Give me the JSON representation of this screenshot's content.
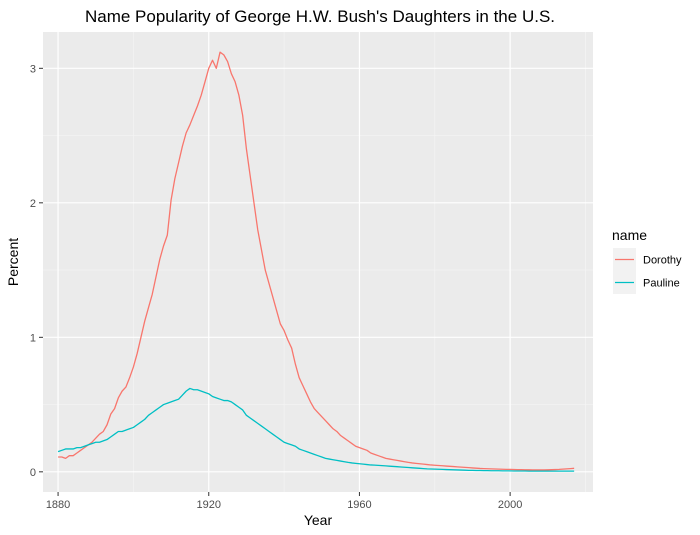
{
  "chart_data": {
    "type": "line",
    "title": "Name Popularity of George H.W. Bush's Daughters in the U.S.",
    "xlabel": "Year",
    "ylabel": "Percent",
    "xlim": [
      1876,
      2022
    ],
    "ylim": [
      -0.15,
      3.27
    ],
    "x_ticks": [
      1880,
      1920,
      1960,
      2000
    ],
    "y_ticks": [
      0,
      1,
      2,
      3
    ],
    "grid": true,
    "legend": {
      "title": "name",
      "placement": "right",
      "entries": [
        "Dorothy",
        "Pauline"
      ]
    },
    "colors": {
      "Dorothy": "#F8766D",
      "Pauline": "#00BFC4"
    },
    "x": [
      1880,
      1881,
      1882,
      1883,
      1884,
      1885,
      1886,
      1887,
      1888,
      1889,
      1890,
      1891,
      1892,
      1893,
      1894,
      1895,
      1896,
      1897,
      1898,
      1899,
      1900,
      1901,
      1902,
      1903,
      1904,
      1905,
      1906,
      1907,
      1908,
      1909,
      1910,
      1911,
      1912,
      1913,
      1914,
      1915,
      1916,
      1917,
      1918,
      1919,
      1920,
      1921,
      1922,
      1923,
      1924,
      1925,
      1926,
      1927,
      1928,
      1929,
      1930,
      1931,
      1932,
      1933,
      1934,
      1935,
      1936,
      1937,
      1938,
      1939,
      1940,
      1941,
      1942,
      1943,
      1944,
      1945,
      1946,
      1947,
      1948,
      1949,
      1950,
      1951,
      1952,
      1953,
      1954,
      1955,
      1956,
      1957,
      1958,
      1959,
      1960,
      1961,
      1962,
      1963,
      1964,
      1965,
      1966,
      1967,
      1968,
      1969,
      1970,
      1971,
      1972,
      1973,
      1974,
      1975,
      1976,
      1977,
      1978,
      1979,
      1980,
      1981,
      1982,
      1983,
      1984,
      1985,
      1986,
      1987,
      1988,
      1989,
      1990,
      1991,
      1992,
      1993,
      1994,
      1995,
      1996,
      1997,
      1998,
      1999,
      2000,
      2001,
      2002,
      2003,
      2004,
      2005,
      2006,
      2007,
      2008,
      2009,
      2010,
      2011,
      2012,
      2013,
      2014,
      2015,
      2016,
      2017
    ],
    "series": [
      {
        "name": "Dorothy",
        "values": [
          0.11,
          0.11,
          0.1,
          0.12,
          0.12,
          0.14,
          0.16,
          0.18,
          0.2,
          0.22,
          0.25,
          0.28,
          0.3,
          0.35,
          0.43,
          0.47,
          0.55,
          0.6,
          0.63,
          0.7,
          0.78,
          0.88,
          1.0,
          1.12,
          1.22,
          1.32,
          1.45,
          1.58,
          1.68,
          1.76,
          2.02,
          2.18,
          2.3,
          2.42,
          2.52,
          2.58,
          2.65,
          2.72,
          2.8,
          2.9,
          3.0,
          3.06,
          3.0,
          3.12,
          3.1,
          3.05,
          2.96,
          2.9,
          2.8,
          2.65,
          2.4,
          2.2,
          2.0,
          1.8,
          1.65,
          1.5,
          1.4,
          1.3,
          1.2,
          1.1,
          1.05,
          0.98,
          0.92,
          0.8,
          0.7,
          0.64,
          0.58,
          0.52,
          0.47,
          0.44,
          0.41,
          0.38,
          0.35,
          0.32,
          0.3,
          0.27,
          0.25,
          0.23,
          0.21,
          0.19,
          0.18,
          0.17,
          0.16,
          0.14,
          0.13,
          0.12,
          0.11,
          0.1,
          0.095,
          0.09,
          0.085,
          0.08,
          0.075,
          0.07,
          0.066,
          0.063,
          0.06,
          0.057,
          0.054,
          0.051,
          0.049,
          0.047,
          0.045,
          0.043,
          0.041,
          0.039,
          0.037,
          0.035,
          0.033,
          0.031,
          0.029,
          0.027,
          0.025,
          0.024,
          0.023,
          0.022,
          0.021,
          0.02,
          0.019,
          0.018,
          0.018,
          0.017,
          0.016,
          0.016,
          0.015,
          0.015,
          0.014,
          0.014,
          0.014,
          0.014,
          0.015,
          0.016,
          0.017,
          0.018,
          0.02,
          0.022,
          0.024,
          0.026
        ]
      },
      {
        "name": "Pauline",
        "values": [
          0.15,
          0.16,
          0.17,
          0.17,
          0.17,
          0.18,
          0.18,
          0.19,
          0.2,
          0.21,
          0.22,
          0.22,
          0.23,
          0.24,
          0.26,
          0.28,
          0.3,
          0.3,
          0.31,
          0.32,
          0.33,
          0.35,
          0.37,
          0.39,
          0.42,
          0.44,
          0.46,
          0.48,
          0.5,
          0.51,
          0.52,
          0.53,
          0.54,
          0.57,
          0.6,
          0.62,
          0.61,
          0.61,
          0.6,
          0.59,
          0.58,
          0.56,
          0.55,
          0.54,
          0.53,
          0.53,
          0.52,
          0.5,
          0.48,
          0.46,
          0.42,
          0.4,
          0.38,
          0.36,
          0.34,
          0.32,
          0.3,
          0.28,
          0.26,
          0.24,
          0.22,
          0.21,
          0.2,
          0.19,
          0.17,
          0.16,
          0.15,
          0.14,
          0.13,
          0.12,
          0.11,
          0.1,
          0.095,
          0.09,
          0.085,
          0.08,
          0.075,
          0.07,
          0.066,
          0.063,
          0.06,
          0.057,
          0.054,
          0.051,
          0.05,
          0.048,
          0.046,
          0.044,
          0.042,
          0.04,
          0.038,
          0.036,
          0.034,
          0.032,
          0.03,
          0.028,
          0.026,
          0.024,
          0.022,
          0.021,
          0.02,
          0.019,
          0.018,
          0.017,
          0.016,
          0.015,
          0.014,
          0.013,
          0.012,
          0.011,
          0.011,
          0.01,
          0.01,
          0.009,
          0.009,
          0.008,
          0.008,
          0.008,
          0.007,
          0.007,
          0.007,
          0.006,
          0.006,
          0.006,
          0.006,
          0.005,
          0.005,
          0.005,
          0.005,
          0.005,
          0.005,
          0.005,
          0.005,
          0.005,
          0.005,
          0.005,
          0.005,
          0.005
        ]
      }
    ]
  }
}
